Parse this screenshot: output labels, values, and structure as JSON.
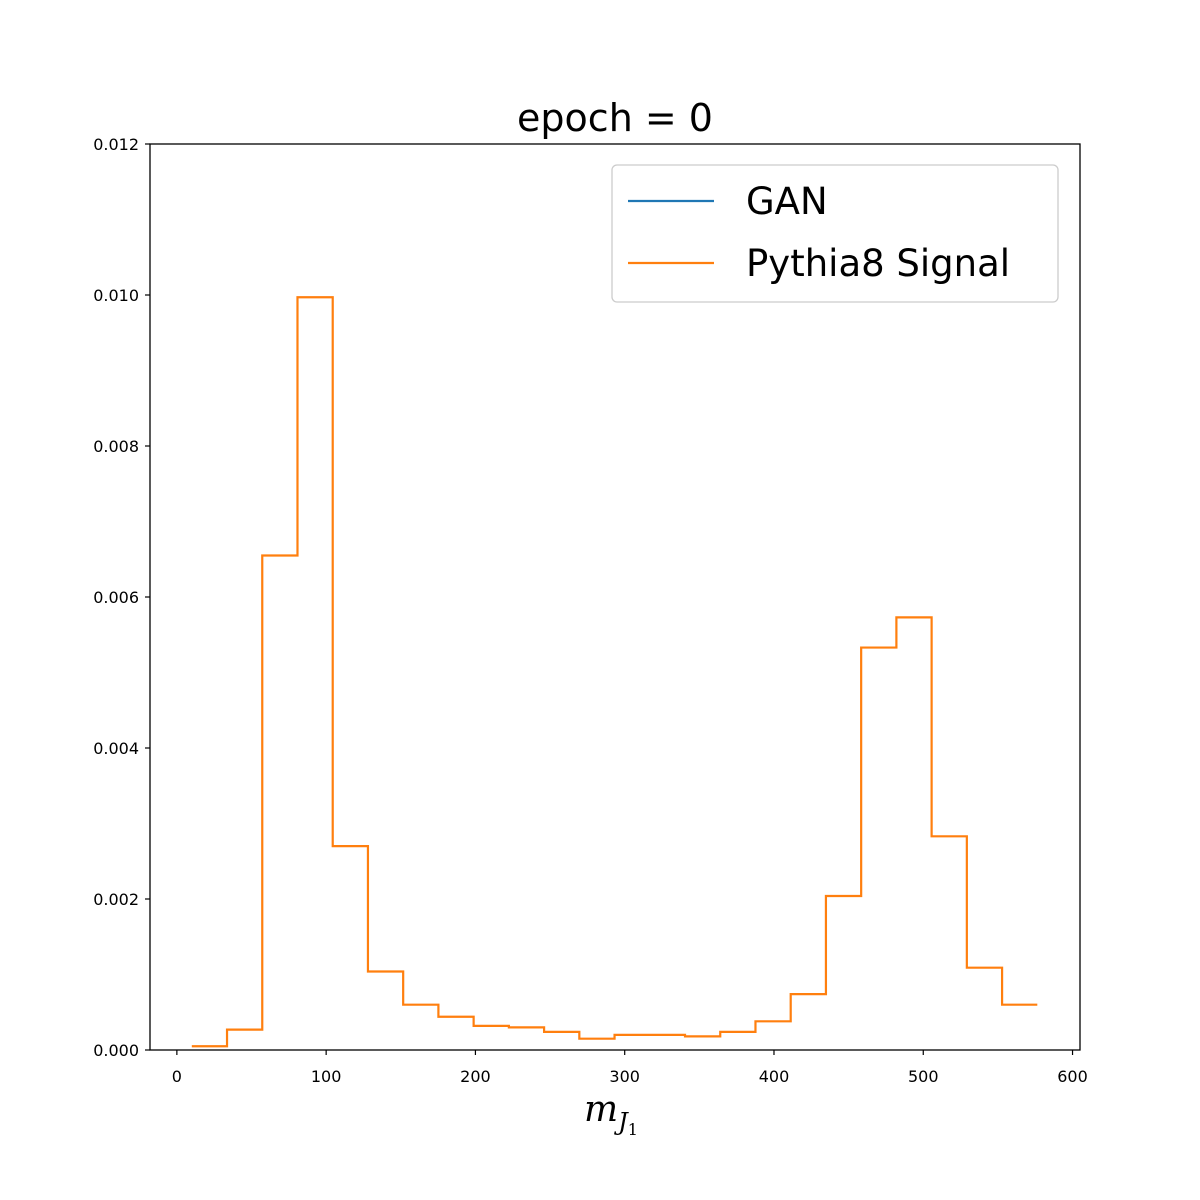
{
  "chart_data": {
    "type": "histogram-step",
    "title": "epoch = 0",
    "xlabel": {
      "main": "m",
      "sub": "J",
      "subsub": "1"
    },
    "ylabel": "",
    "xlim": [
      -18,
      605
    ],
    "ylim": [
      0,
      0.012
    ],
    "xticks": [
      0,
      100,
      200,
      300,
      400,
      500,
      600
    ],
    "xtick_labels": [
      "0",
      "100",
      "200",
      "300",
      "400",
      "500",
      "600"
    ],
    "yticks": [
      0,
      0.002,
      0.004,
      0.006,
      0.008,
      0.01,
      0.012
    ],
    "ytick_labels": [
      "0.000",
      "0.002",
      "0.004",
      "0.006",
      "0.008",
      "0.010",
      "0.012"
    ],
    "grid": false,
    "legend_position": "top-right",
    "series": [
      {
        "name": "GAN",
        "color": "#1f77b4",
        "bin_edges": [],
        "values": []
      },
      {
        "name": "Pythia8 Signal",
        "color": "#ff7f0e",
        "bin_edges": [
          10,
          33.6,
          57.2,
          80.8,
          104.4,
          128,
          151.6,
          175.2,
          198.8,
          222.4,
          246,
          269.6,
          293.2,
          316.8,
          340.4,
          364,
          387.6,
          411.2,
          434.8,
          458.4,
          482,
          505.6,
          529.2,
          552.8,
          576.4
        ],
        "values": [
          5e-05,
          0.00027,
          0.00655,
          0.00997,
          0.0027,
          0.00104,
          0.0006,
          0.00044,
          0.00032,
          0.0003,
          0.00024,
          0.00015,
          0.0002,
          0.0002,
          0.00018,
          0.00024,
          0.00038,
          0.00074,
          0.00204,
          0.00533,
          0.00573,
          0.00283,
          0.00109,
          0.0006
        ]
      }
    ]
  }
}
